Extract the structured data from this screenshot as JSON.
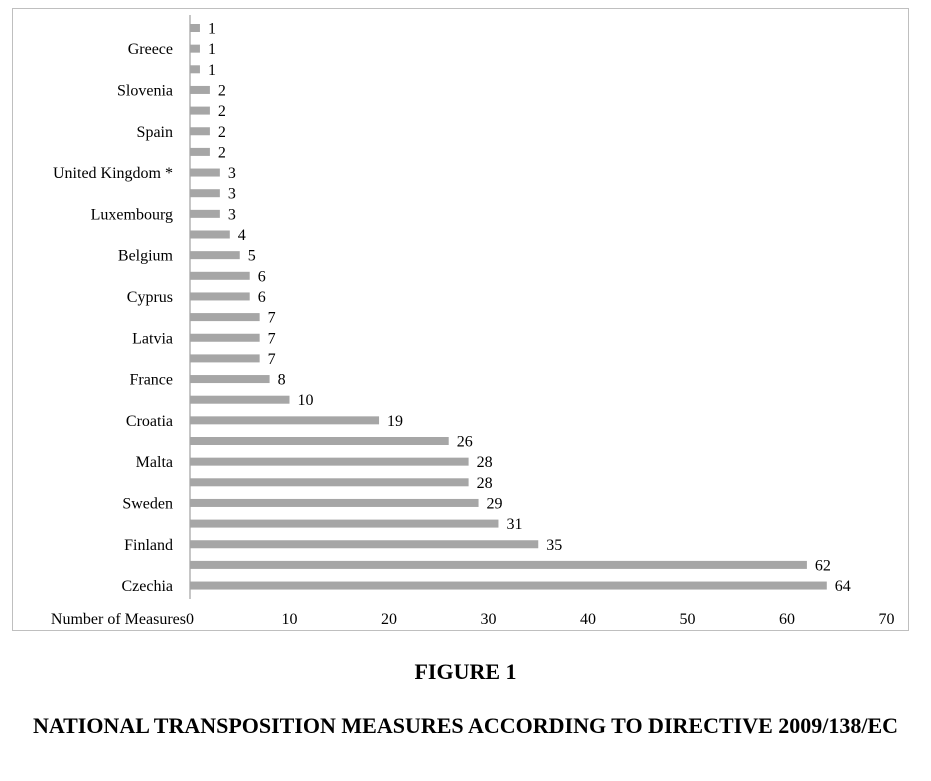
{
  "chart_data": {
    "type": "bar",
    "orientation": "horizontal",
    "xlabel": "Number of Measures",
    "xlim": [
      0,
      70
    ],
    "xticks": [
      0,
      10,
      20,
      30,
      40,
      50,
      60,
      70
    ],
    "bar_color": "#a6a6a6",
    "grid": false,
    "bars": [
      {
        "label": "",
        "value": 1
      },
      {
        "label": "Greece",
        "value": 1
      },
      {
        "label": "",
        "value": 1
      },
      {
        "label": "Slovenia",
        "value": 2
      },
      {
        "label": "",
        "value": 2
      },
      {
        "label": "Spain",
        "value": 2
      },
      {
        "label": "",
        "value": 2
      },
      {
        "label": "United Kingdom *",
        "value": 3
      },
      {
        "label": "",
        "value": 3
      },
      {
        "label": "Luxembourg",
        "value": 3
      },
      {
        "label": "",
        "value": 4
      },
      {
        "label": "Belgium",
        "value": 5
      },
      {
        "label": "",
        "value": 6
      },
      {
        "label": "Cyprus",
        "value": 6
      },
      {
        "label": "",
        "value": 7
      },
      {
        "label": "Latvia",
        "value": 7
      },
      {
        "label": "",
        "value": 7
      },
      {
        "label": "France",
        "value": 8
      },
      {
        "label": "",
        "value": 10
      },
      {
        "label": "Croatia",
        "value": 19
      },
      {
        "label": "",
        "value": 26
      },
      {
        "label": "Malta",
        "value": 28
      },
      {
        "label": "",
        "value": 28
      },
      {
        "label": "Sweden",
        "value": 29
      },
      {
        "label": "",
        "value": 31
      },
      {
        "label": "Finland",
        "value": 35
      },
      {
        "label": "",
        "value": 62
      },
      {
        "label": "Czechia",
        "value": 64
      }
    ]
  },
  "figure": {
    "label": "FIGURE 1",
    "caption": "NATIONAL TRANSPOSITION MEASURES ACCORDING TO DIRECTIVE 2009/138/EC"
  }
}
